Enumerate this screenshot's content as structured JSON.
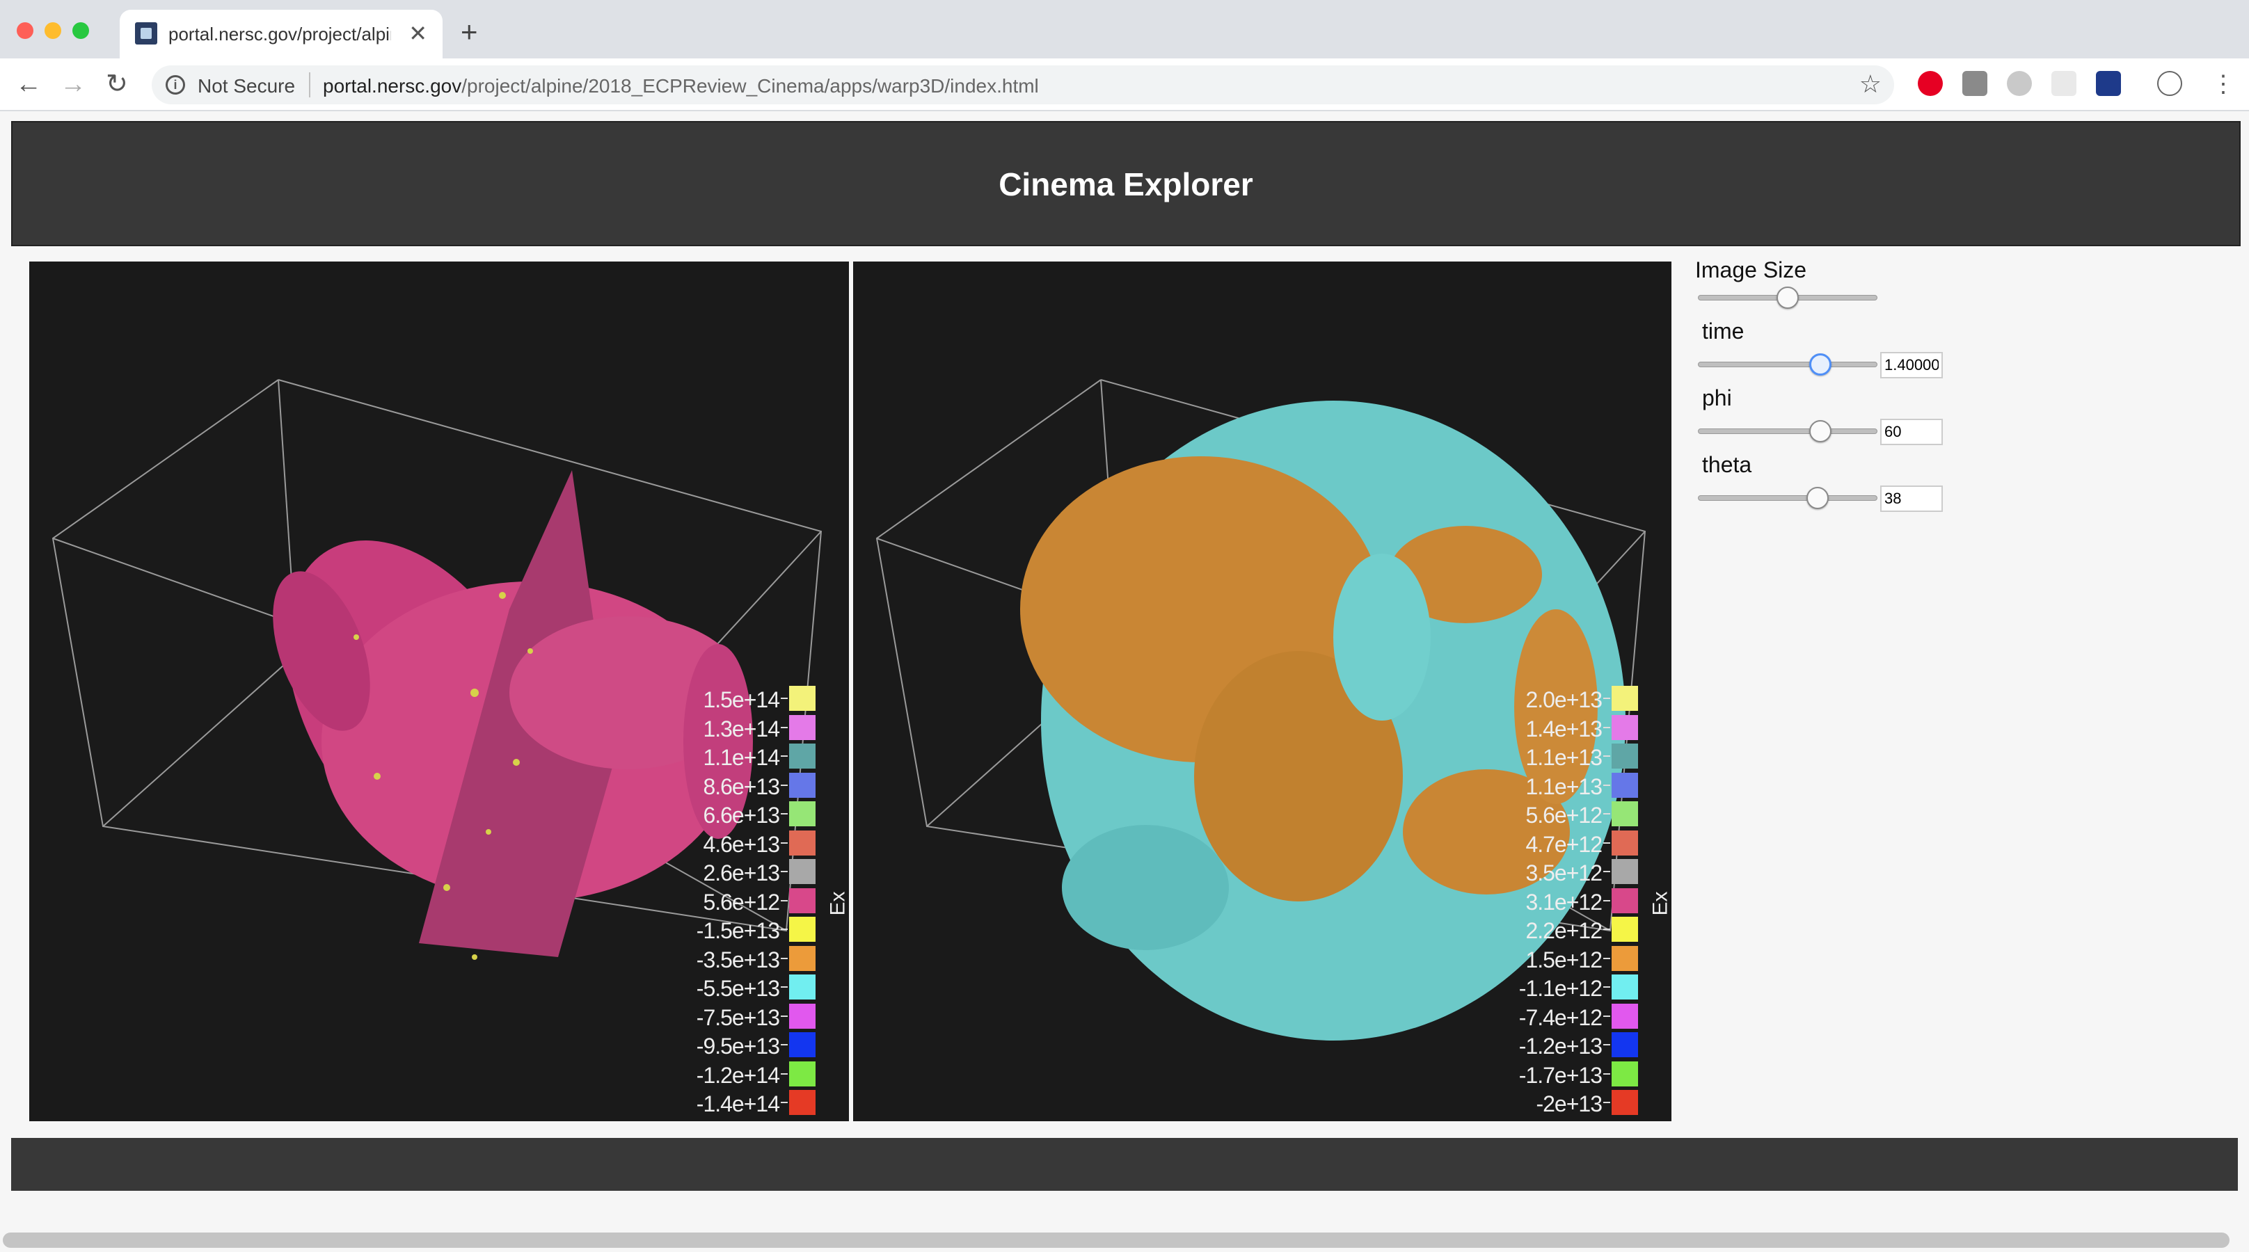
{
  "browser": {
    "tab_title": "portal.nersc.gov/project/alpine",
    "address_security": "Not Secure",
    "url_domain": "portal.nersc.gov",
    "url_path": "/project/alpine/2018_ECPReview_Cinema/apps/warp3D/index.html"
  },
  "page": {
    "title": "Cinema Explorer"
  },
  "left_view": {
    "axis_title": "Ex",
    "legend": [
      {
        "label": "1.5e+14",
        "color": "#f3f27a"
      },
      {
        "label": "1.3e+14",
        "color": "#e47ae8"
      },
      {
        "label": "1.1e+14",
        "color": "#5fa6a6"
      },
      {
        "label": "8.6e+13",
        "color": "#6577e8"
      },
      {
        "label": "6.6e+13",
        "color": "#96e676"
      },
      {
        "label": "4.6e+13",
        "color": "#e06a55"
      },
      {
        "label": "2.6e+13",
        "color": "#a8a8a8"
      },
      {
        "label": "5.6e+12",
        "color": "#d8488a"
      },
      {
        "label": "-1.5e+13",
        "color": "#f5f547"
      },
      {
        "label": "-3.5e+13",
        "color": "#ec9b3a"
      },
      {
        "label": "-5.5e+13",
        "color": "#71eef0"
      },
      {
        "label": "-7.5e+13",
        "color": "#e158ee"
      },
      {
        "label": "-9.5e+13",
        "color": "#1336f0"
      },
      {
        "label": "-1.2e+14",
        "color": "#7de944"
      },
      {
        "label": "-1.4e+14",
        "color": "#e53a25"
      }
    ]
  },
  "right_view": {
    "axis_title": "Ex",
    "legend": [
      {
        "label": "2.0e+13",
        "color": "#f3f27a"
      },
      {
        "label": "1.4e+13",
        "color": "#e47ae8"
      },
      {
        "label": "1.1e+13",
        "color": "#5fa6a6"
      },
      {
        "label": "1.1e+13",
        "color": "#6577e8"
      },
      {
        "label": "5.6e+12",
        "color": "#96e676"
      },
      {
        "label": "4.7e+12",
        "color": "#e06a55"
      },
      {
        "label": "3.5e+12",
        "color": "#a8a8a8"
      },
      {
        "label": "3.1e+12",
        "color": "#d8488a"
      },
      {
        "label": "2.2e+12",
        "color": "#f5f547"
      },
      {
        "label": "1.5e+12",
        "color": "#ec9b3a"
      },
      {
        "label": "-1.1e+12",
        "color": "#71eef0"
      },
      {
        "label": "-7.4e+12",
        "color": "#e158ee"
      },
      {
        "label": "-1.2e+13",
        "color": "#1336f0"
      },
      {
        "label": "-1.7e+13",
        "color": "#7de944"
      },
      {
        "label": "-2e+13",
        "color": "#e53a25"
      }
    ]
  },
  "controls": {
    "image_size": {
      "label": "Image Size",
      "level": 0.5
    },
    "time": {
      "label": "time",
      "value": "1.40000",
      "level": 0.71
    },
    "phi": {
      "label": "phi",
      "value": "60",
      "level": 0.71
    },
    "theta": {
      "label": "theta",
      "value": "38",
      "level": 0.69
    }
  }
}
